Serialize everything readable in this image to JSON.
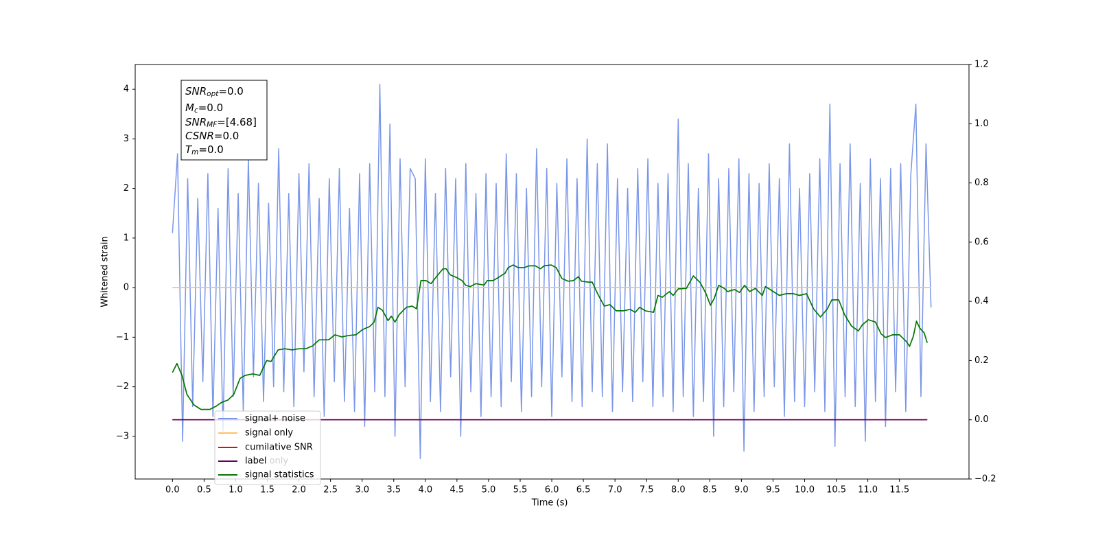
{
  "chart_data": {
    "type": "line",
    "xlabel": "Time (s)",
    "ylabel": "Whitened strain",
    "xlim": [
      -0.59,
      12.6
    ],
    "ylim": [
      -3.86,
      4.5
    ],
    "y2lim": [
      -0.2,
      1.2
    ],
    "xticks": [
      {
        "value": 0,
        "label": "0.0"
      },
      {
        "value": 0.5,
        "label": "0.5"
      },
      {
        "value": 1,
        "label": "1.0"
      },
      {
        "value": 1.5,
        "label": "1.5"
      },
      {
        "value": 2,
        "label": "2.0"
      },
      {
        "value": 2.5,
        "label": "2.5"
      },
      {
        "value": 3,
        "label": "3.0"
      },
      {
        "value": 3.5,
        "label": "3.5"
      },
      {
        "value": 4,
        "label": "4.0"
      },
      {
        "value": 4.5,
        "label": "4.5"
      },
      {
        "value": 5,
        "label": "5.0"
      },
      {
        "value": 5.5,
        "label": "5.5"
      },
      {
        "value": 6,
        "label": "6.0"
      },
      {
        "value": 6.5,
        "label": "6.5"
      },
      {
        "value": 7,
        "label": "7.0"
      },
      {
        "value": 7.5,
        "label": "7.5"
      },
      {
        "value": 8,
        "label": "8.0"
      },
      {
        "value": 8.5,
        "label": "8.5"
      },
      {
        "value": 9,
        "label": "9.0"
      },
      {
        "value": 9.5,
        "label": "9.5"
      },
      {
        "value": 10,
        "label": "10.0"
      },
      {
        "value": 10.5,
        "label": "10.5"
      },
      {
        "value": 11,
        "label": "11.0"
      },
      {
        "value": 11.5,
        "label": "11.5"
      }
    ],
    "yticks": [
      {
        "value": -3,
        "label": "−3"
      },
      {
        "value": -2,
        "label": "−2"
      },
      {
        "value": -1,
        "label": "−1"
      },
      0,
      1,
      2,
      3,
      4
    ],
    "y2ticks": [
      {
        "value": -0.2,
        "label": "−0.2"
      },
      {
        "value": 0,
        "label": "0.0"
      },
      {
        "value": 0.2,
        "label": "0.2"
      },
      {
        "value": 0.4,
        "label": "0.4"
      },
      {
        "value": 0.6,
        "label": "0.6"
      },
      {
        "value": 0.8,
        "label": "0.8"
      },
      {
        "value": 1,
        "label": "1.0"
      },
      {
        "value": 1.2,
        "label": "1.2"
      }
    ],
    "grid": false,
    "legend": "lower left",
    "background_legend": [
      "label only"
    ],
    "annotation": [
      {
        "base": "SNR",
        "sub": "opt",
        "text": "=0.0"
      },
      {
        "base": "M",
        "sub": "c",
        "text": "=0.0"
      },
      {
        "base": "SNR",
        "sub": "MF",
        "text": "=[4.68]"
      },
      {
        "base": "CSNR",
        "sub": "",
        "text": "=0.0"
      },
      {
        "base": "T",
        "sub": "m",
        "text": "=0.0"
      }
    ],
    "series": [
      {
        "name": "signal+ noise",
        "color": "#7a96e8",
        "axis": "y",
        "x": [
          0,
          0.08,
          0.16,
          0.24,
          0.32,
          0.4,
          0.48,
          0.56,
          0.64,
          0.72,
          0.8,
          0.88,
          0.96,
          1.04,
          1.12,
          1.2,
          1.28,
          1.36,
          1.44,
          1.52,
          1.6,
          1.68,
          1.76,
          1.84,
          1.92,
          2,
          2.08,
          2.16,
          2.24,
          2.32,
          2.4,
          2.48,
          2.56,
          2.64,
          2.72,
          2.8,
          2.88,
          2.96,
          3.04,
          3.12,
          3.2,
          3.28,
          3.36,
          3.44,
          3.52,
          3.6,
          3.68,
          3.76,
          3.84,
          3.92,
          4,
          4.08,
          4.16,
          4.24,
          4.32,
          4.4,
          4.48,
          4.56,
          4.64,
          4.72,
          4.8,
          4.88,
          4.96,
          5.04,
          5.12,
          5.2,
          5.28,
          5.36,
          5.44,
          5.52,
          5.6,
          5.68,
          5.76,
          5.84,
          5.92,
          6,
          6.08,
          6.16,
          6.24,
          6.32,
          6.4,
          6.48,
          6.56,
          6.64,
          6.72,
          6.8,
          6.88,
          6.96,
          7.04,
          7.12,
          7.2,
          7.28,
          7.36,
          7.44,
          7.52,
          7.6,
          7.68,
          7.76,
          7.84,
          7.92,
          8,
          8.08,
          8.16,
          8.24,
          8.32,
          8.4,
          8.48,
          8.56,
          8.64,
          8.72,
          8.8,
          8.88,
          8.96,
          9.04,
          9.12,
          9.2,
          9.28,
          9.36,
          9.44,
          9.52,
          9.6,
          9.68,
          9.76,
          9.84,
          9.92,
          10,
          10.08,
          10.16,
          10.24,
          10.32,
          10.4,
          10.48,
          10.56,
          10.64,
          10.72,
          10.8,
          10.88,
          10.96,
          11.04,
          11.12,
          11.2,
          11.28,
          11.36,
          11.44,
          11.52,
          11.6,
          11.68,
          11.76,
          11.84,
          11.92,
          12
        ],
        "values": [
          1.1,
          2.7,
          -3.1,
          2.2,
          -2.4,
          1.8,
          -1.9,
          2.3,
          -2.6,
          1.6,
          -2.9,
          2.4,
          -2.2,
          1.9,
          -2.5,
          2.6,
          -1.8,
          2.1,
          -2.3,
          1.7,
          -2.0,
          2.8,
          -2.1,
          1.9,
          -2.4,
          2.3,
          -1.7,
          2.5,
          -2.2,
          1.8,
          -2.6,
          2.2,
          -1.9,
          2.4,
          -2.3,
          1.6,
          -2.5,
          2.3,
          -2.8,
          2.5,
          -2.1,
          4.1,
          -2.2,
          3.3,
          -3.0,
          2.6,
          -2.0,
          2.4,
          2.2,
          -3.45,
          2.6,
          -2.3,
          1.9,
          -2.5,
          2.4,
          -1.8,
          2.2,
          -3.0,
          2.5,
          -2.1,
          1.9,
          -2.6,
          2.3,
          -2.2,
          2.1,
          -2.4,
          2.7,
          -1.9,
          2.3,
          -2.5,
          2.0,
          -2.2,
          2.8,
          -2.0,
          2.4,
          -2.6,
          2.1,
          -1.8,
          2.6,
          -2.3,
          2.2,
          -2.4,
          3.0,
          -2.1,
          2.5,
          -2.2,
          2.9,
          -2.5,
          2.2,
          -2.1,
          2.0,
          -2.3,
          2.4,
          -1.9,
          2.6,
          -2.4,
          2.1,
          -2.2,
          2.3,
          -2.5,
          3.4,
          -2.2,
          2.5,
          -2.6,
          2.0,
          -2.3,
          2.7,
          -3.0,
          2.2,
          -2.4,
          2.4,
          -2.1,
          2.6,
          -3.3,
          2.3,
          -2.5,
          2.1,
          -2.2,
          2.5,
          -2.0,
          2.2,
          -2.6,
          2.9,
          -2.3,
          2.0,
          -2.4,
          2.3,
          -2.1,
          2.6,
          -2.5,
          3.7,
          -3.2,
          2.5,
          -2.2,
          2.9,
          -2.4,
          2.1,
          -3.1,
          2.6,
          -2.3,
          2.2,
          -2.8,
          2.4,
          -2.1,
          2.5,
          -2.5,
          2.3,
          3.7,
          -2.2,
          2.9,
          -0.4
        ]
      },
      {
        "name": "signal only",
        "color": "#ffbf66",
        "axis": "y",
        "x": [
          0,
          12
        ],
        "values": [
          0,
          0
        ]
      },
      {
        "name": "cumilative SNR",
        "color": "#ff0000",
        "axis": "y2",
        "x": [
          0,
          11.94
        ],
        "values": [
          0,
          0
        ]
      },
      {
        "name": "label",
        "color": "#660066",
        "axis": "y2",
        "x": [
          0,
          11.94
        ],
        "values": [
          0,
          0
        ]
      },
      {
        "name": "signal statistics",
        "color": "#007700",
        "axis": "y2",
        "x": [
          0,
          0.07,
          0.15,
          0.23,
          0.34,
          0.45,
          0.59,
          0.69,
          0.77,
          0.88,
          0.97,
          1.07,
          1.15,
          1.27,
          1.38,
          1.49,
          1.56,
          1.67,
          1.78,
          1.89,
          2,
          2.11,
          2.22,
          2.32,
          2.47,
          2.57,
          2.68,
          2.79,
          2.9,
          3.01,
          3.12,
          3.19,
          3.25,
          3.32,
          3.41,
          3.46,
          3.52,
          3.59,
          3.7,
          3.79,
          3.86,
          3.93,
          4.01,
          4.09,
          4.2,
          4.28,
          4.33,
          4.39,
          4.5,
          4.58,
          4.64,
          4.71,
          4.8,
          4.93,
          4.98,
          5.07,
          5.15,
          5.26,
          5.31,
          5.39,
          5.47,
          5.56,
          5.64,
          5.74,
          5.82,
          5.88,
          5.99,
          6.07,
          6.16,
          6.26,
          6.34,
          6.42,
          6.47,
          6.58,
          6.64,
          6.72,
          6.83,
          6.92,
          7.02,
          7.13,
          7.24,
          7.32,
          7.39,
          7.48,
          7.61,
          7.68,
          7.75,
          7.86,
          7.92,
          8,
          8.13,
          8.24,
          8.35,
          8.44,
          8.51,
          8.57,
          8.64,
          8.73,
          8.78,
          8.89,
          8.97,
          9.05,
          9.13,
          9.22,
          9.33,
          9.38,
          9.49,
          9.6,
          9.71,
          9.82,
          9.92,
          10.03,
          10.14,
          10.25,
          10.36,
          10.43,
          10.54,
          10.63,
          10.74,
          10.85,
          10.91,
          11.01,
          11.12,
          11.21,
          11.28,
          11.39,
          11.5,
          11.61,
          11.66,
          11.72,
          11.77,
          11.82,
          11.89,
          11.94
        ],
        "values": [
          0.16,
          0.19,
          0.15,
          0.085,
          0.05,
          0.035,
          0.035,
          0.046,
          0.058,
          0.067,
          0.086,
          0.14,
          0.15,
          0.155,
          0.15,
          0.2,
          0.197,
          0.236,
          0.24,
          0.236,
          0.24,
          0.24,
          0.25,
          0.27,
          0.27,
          0.287,
          0.28,
          0.285,
          0.287,
          0.305,
          0.315,
          0.33,
          0.38,
          0.37,
          0.335,
          0.35,
          0.33,
          0.356,
          0.38,
          0.384,
          0.375,
          0.47,
          0.47,
          0.46,
          0.49,
          0.51,
          0.51,
          0.49,
          0.48,
          0.47,
          0.454,
          0.45,
          0.46,
          0.455,
          0.47,
          0.47,
          0.48,
          0.495,
          0.514,
          0.523,
          0.514,
          0.514,
          0.52,
          0.52,
          0.51,
          0.52,
          0.523,
          0.514,
          0.477,
          0.468,
          0.47,
          0.483,
          0.468,
          0.465,
          0.465,
          0.428,
          0.384,
          0.389,
          0.368,
          0.368,
          0.373,
          0.363,
          0.38,
          0.368,
          0.363,
          0.42,
          0.414,
          0.433,
          0.42,
          0.442,
          0.444,
          0.486,
          0.463,
          0.426,
          0.387,
          0.41,
          0.454,
          0.444,
          0.433,
          0.44,
          0.43,
          0.454,
          0.433,
          0.444,
          0.42,
          0.45,
          0.435,
          0.42,
          0.426,
          0.426,
          0.42,
          0.426,
          0.375,
          0.347,
          0.375,
          0.405,
          0.405,
          0.356,
          0.317,
          0.3,
          0.32,
          0.338,
          0.33,
          0.29,
          0.278,
          0.287,
          0.287,
          0.264,
          0.248,
          0.282,
          0.333,
          0.31,
          0.294,
          0.26
        ]
      }
    ]
  }
}
